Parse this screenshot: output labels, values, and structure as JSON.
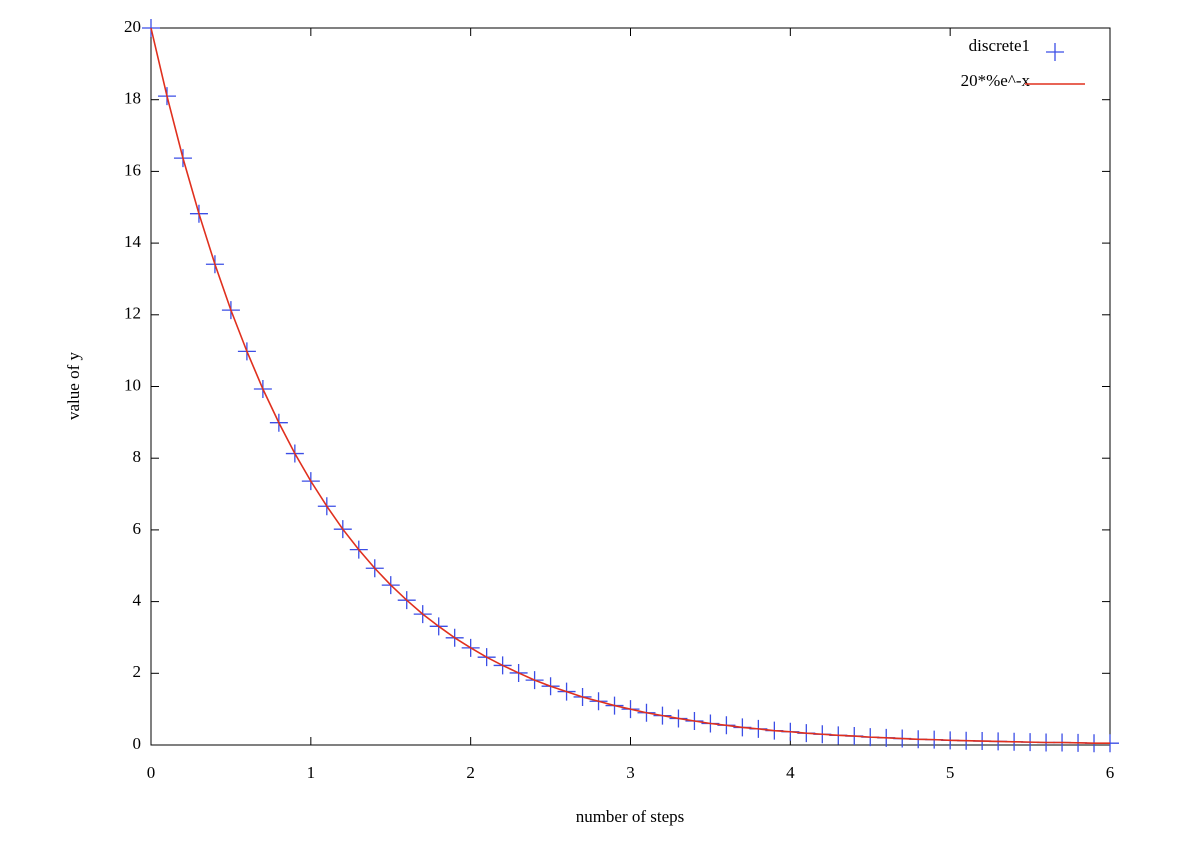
{
  "chart_data": {
    "type": "line",
    "xlabel": "number of steps",
    "ylabel": "value of y",
    "x": [
      0,
      0.1,
      0.2,
      0.3,
      0.4,
      0.5,
      0.6,
      0.7,
      0.8,
      0.9,
      1,
      1.1,
      1.2,
      1.3,
      1.4,
      1.5,
      1.6,
      1.7,
      1.8,
      1.9,
      2,
      2.1,
      2.2,
      2.3,
      2.4,
      2.5,
      2.6,
      2.7,
      2.8,
      2.9,
      3,
      3.1,
      3.2,
      3.3,
      3.4,
      3.5,
      3.6,
      3.7,
      3.8,
      3.9,
      4,
      4.1,
      4.2,
      4.3,
      4.4,
      4.5,
      4.6,
      4.7,
      4.8,
      4.9,
      5,
      5.1,
      5.2,
      5.3,
      5.4,
      5.5,
      5.6,
      5.7,
      5.8,
      5.9,
      6
    ],
    "series": [
      {
        "name": "discrete1",
        "color": "#3b4ee6",
        "style": "points",
        "values": [
          20,
          18.1,
          16.37,
          14.82,
          13.41,
          12.13,
          10.98,
          9.93,
          8.99,
          8.13,
          7.36,
          6.66,
          6.02,
          5.45,
          4.93,
          4.46,
          4.04,
          3.65,
          3.31,
          2.99,
          2.71,
          2.45,
          2.22,
          2.01,
          1.81,
          1.64,
          1.49,
          1.34,
          1.22,
          1.1,
          1,
          0.9,
          0.82,
          0.74,
          0.67,
          0.6,
          0.55,
          0.49,
          0.45,
          0.4,
          0.37,
          0.33,
          0.3,
          0.27,
          0.25,
          0.22,
          0.2,
          0.18,
          0.16,
          0.15,
          0.13,
          0.12,
          0.11,
          0.1,
          0.09,
          0.08,
          0.07,
          0.07,
          0.06,
          0.05,
          0.05
        ]
      },
      {
        "name": "20*%e^-x",
        "color": "#e0301e",
        "style": "lines",
        "values": [
          20,
          18.1,
          16.37,
          14.82,
          13.41,
          12.13,
          10.98,
          9.93,
          8.99,
          8.13,
          7.36,
          6.66,
          6.02,
          5.45,
          4.93,
          4.46,
          4.04,
          3.65,
          3.31,
          2.99,
          2.71,
          2.45,
          2.22,
          2.01,
          1.81,
          1.64,
          1.49,
          1.34,
          1.22,
          1.1,
          1,
          0.9,
          0.82,
          0.74,
          0.67,
          0.6,
          0.55,
          0.49,
          0.45,
          0.4,
          0.37,
          0.33,
          0.3,
          0.27,
          0.25,
          0.22,
          0.2,
          0.18,
          0.16,
          0.15,
          0.13,
          0.12,
          0.11,
          0.1,
          0.09,
          0.08,
          0.07,
          0.07,
          0.06,
          0.05,
          0.05
        ]
      }
    ],
    "xlim": [
      0,
      6
    ],
    "xticks": [
      0,
      1,
      2,
      3,
      4,
      5,
      6
    ],
    "ylim": [
      0,
      20
    ],
    "yticks": [
      0,
      2,
      4,
      6,
      8,
      10,
      12,
      14,
      16,
      18,
      20
    ],
    "legend": "top-right"
  }
}
